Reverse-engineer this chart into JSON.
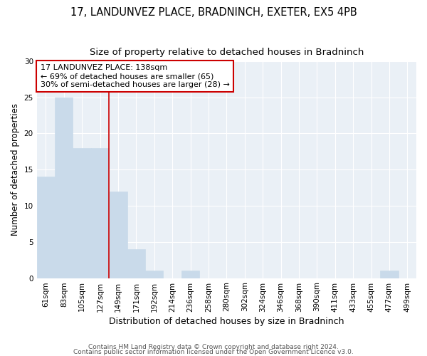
{
  "title": "17, LANDUNVEZ PLACE, BRADNINCH, EXETER, EX5 4PB",
  "subtitle": "Size of property relative to detached houses in Bradninch",
  "xlabel": "Distribution of detached houses by size in Bradninch",
  "ylabel": "Number of detached properties",
  "categories": [
    "61sqm",
    "83sqm",
    "105sqm",
    "127sqm",
    "149sqm",
    "171sqm",
    "192sqm",
    "214sqm",
    "236sqm",
    "258sqm",
    "280sqm",
    "302sqm",
    "324sqm",
    "346sqm",
    "368sqm",
    "390sqm",
    "411sqm",
    "433sqm",
    "455sqm",
    "477sqm",
    "499sqm"
  ],
  "values": [
    14,
    25,
    18,
    18,
    12,
    4,
    1,
    0,
    1,
    0,
    0,
    0,
    0,
    0,
    0,
    0,
    0,
    0,
    0,
    1,
    0
  ],
  "bar_color": "#c9daea",
  "bar_edge_color": "#a8c4d8",
  "vline_x": 3.5,
  "vline_color": "#cc0000",
  "annotation_text": "17 LANDUNVEZ PLACE: 138sqm\n← 69% of detached houses are smaller (65)\n30% of semi-detached houses are larger (28) →",
  "annotation_box_color": "white",
  "annotation_box_edge_color": "#cc0000",
  "ylim": [
    0,
    30
  ],
  "yticks": [
    0,
    5,
    10,
    15,
    20,
    25,
    30
  ],
  "footer_line1": "Contains HM Land Registry data © Crown copyright and database right 2024.",
  "footer_line2": "Contains public sector information licensed under the Open Government Licence v3.0.",
  "plot_bg_color": "#eaf0f6",
  "fig_bg_color": "#ffffff",
  "grid_color": "#ffffff",
  "title_fontsize": 10.5,
  "subtitle_fontsize": 9.5,
  "xlabel_fontsize": 9,
  "ylabel_fontsize": 8.5,
  "tick_fontsize": 7.5,
  "annotation_fontsize": 8,
  "footer_fontsize": 6.5
}
